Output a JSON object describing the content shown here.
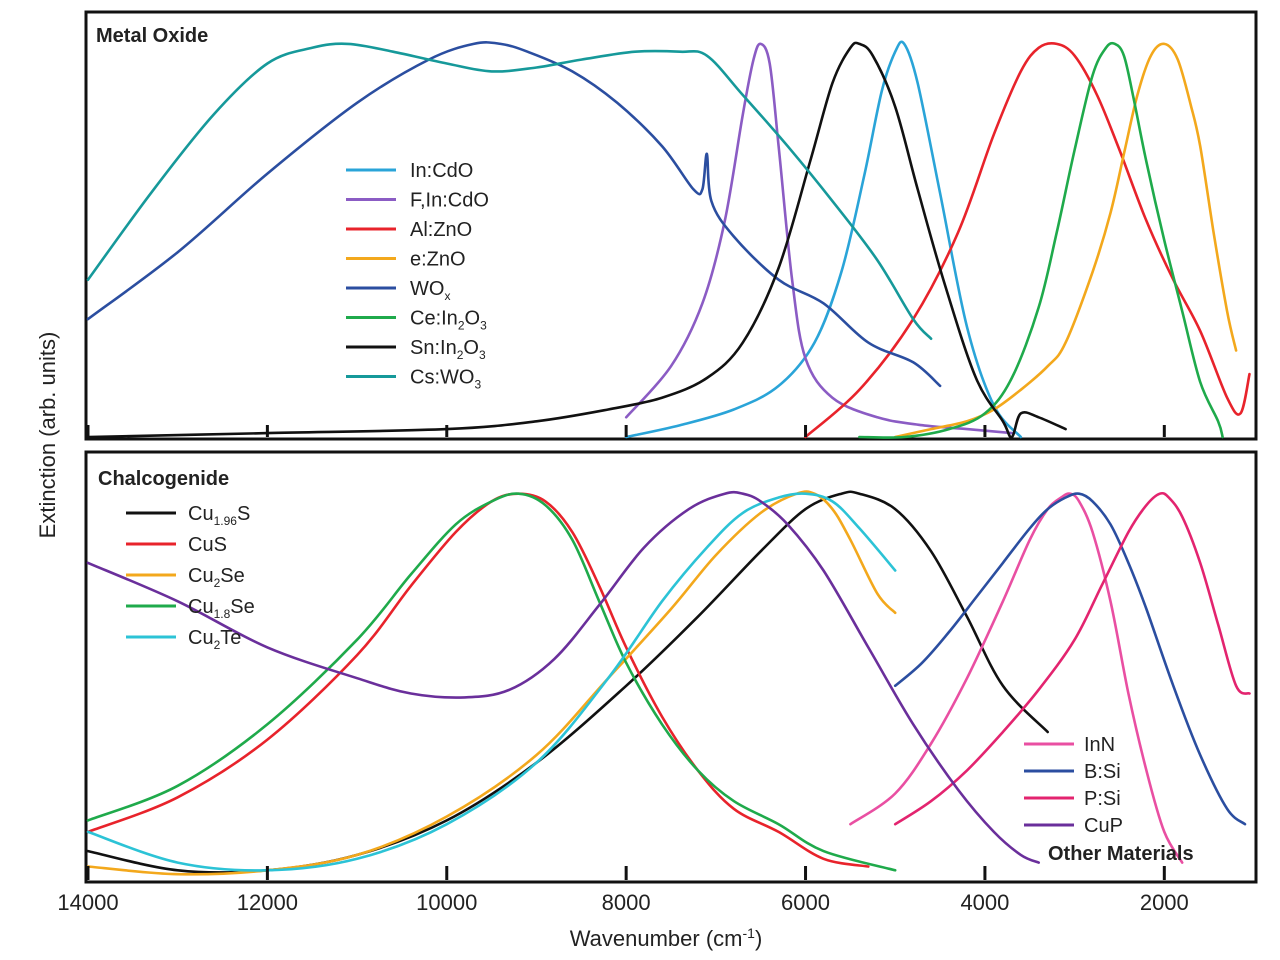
{
  "chart_data": [
    {
      "type": "line",
      "panel_title": "Metal Oxide",
      "xlabel": "Wavenumber (cm-1)",
      "ylabel": "Extinction (arb. units)",
      "xlim": [
        14000,
        1000
      ],
      "ylim": [
        0,
        1.02
      ],
      "x_ticks": [
        14000,
        12000,
        10000,
        8000,
        6000,
        4000,
        2000
      ],
      "grid": false,
      "legend_position": "center-left",
      "series": [
        {
          "name": "In:CdO",
          "color": "#2aa4d8",
          "x": [
            8000,
            7400,
            6800,
            6300,
            5900,
            5600,
            5350,
            5150,
            5000,
            4900,
            4750,
            4500,
            4200,
            3900,
            3600
          ],
          "y": [
            0.0,
            0.03,
            0.07,
            0.13,
            0.24,
            0.42,
            0.66,
            0.88,
            0.98,
            1.0,
            0.9,
            0.62,
            0.28,
            0.08,
            0.0
          ]
        },
        {
          "name": "F,In:CdO",
          "color": "#8b5cc4",
          "x": [
            8000,
            7500,
            7150,
            6900,
            6700,
            6580,
            6500,
            6400,
            6300,
            6150,
            6000,
            5700,
            5200,
            4700,
            4200,
            3700
          ],
          "y": [
            0.05,
            0.18,
            0.34,
            0.55,
            0.82,
            0.96,
            1.0,
            0.95,
            0.74,
            0.4,
            0.2,
            0.1,
            0.05,
            0.03,
            0.02,
            0.01
          ]
        },
        {
          "name": "Al:ZnO",
          "color": "#e8232b",
          "x": [
            6000,
            5400,
            4800,
            4300,
            3900,
            3600,
            3400,
            3200,
            3000,
            2750,
            2500,
            2200,
            1900,
            1600,
            1300,
            1150,
            1050
          ],
          "y": [
            0.0,
            0.12,
            0.3,
            0.52,
            0.77,
            0.93,
            0.99,
            1.0,
            0.97,
            0.87,
            0.73,
            0.55,
            0.4,
            0.27,
            0.1,
            0.06,
            0.16
          ]
        },
        {
          "name": "e:ZnO",
          "color": "#f3a81c",
          "x": [
            5000,
            4600,
            4200,
            3900,
            3600,
            3300,
            3100,
            2800,
            2600,
            2450,
            2300,
            2150,
            2000,
            1850,
            1700,
            1600,
            1450,
            1300,
            1200
          ],
          "y": [
            0.0,
            0.02,
            0.04,
            0.07,
            0.12,
            0.18,
            0.24,
            0.42,
            0.57,
            0.72,
            0.87,
            0.97,
            1.0,
            0.96,
            0.84,
            0.74,
            0.52,
            0.32,
            0.22
          ]
        },
        {
          "name": "WOx",
          "color": "#2b4ea0",
          "x": [
            14000,
            13000,
            12000,
            11000,
            10200,
            9700,
            9400,
            9100,
            8600,
            8100,
            7600,
            7250,
            7150,
            7100,
            7050,
            6800,
            6300,
            5800,
            5300,
            4800,
            4500
          ],
          "y": [
            0.3,
            0.47,
            0.67,
            0.85,
            0.96,
            1.0,
            1.0,
            0.98,
            0.93,
            0.85,
            0.74,
            0.63,
            0.63,
            0.72,
            0.6,
            0.51,
            0.4,
            0.34,
            0.24,
            0.19,
            0.13
          ]
        },
        {
          "name": "Ce:In2O3",
          "color": "#1faa4b",
          "x": [
            5400,
            4900,
            4400,
            4000,
            3700,
            3400,
            3200,
            3000,
            2800,
            2650,
            2550,
            2450,
            2350,
            2200,
            2000,
            1800,
            1600,
            1400,
            1350
          ],
          "y": [
            0.0,
            0.0,
            0.02,
            0.06,
            0.15,
            0.33,
            0.52,
            0.73,
            0.92,
            0.99,
            1.0,
            0.97,
            0.87,
            0.7,
            0.5,
            0.32,
            0.14,
            0.04,
            0.0
          ]
        },
        {
          "name": "Sn:In2O3",
          "color": "#111111",
          "x": [
            14000,
            12000,
            10000,
            9000,
            8200,
            7600,
            7100,
            6700,
            6300,
            5950,
            5700,
            5500,
            5400,
            5250,
            5000,
            4750,
            4450,
            4100,
            3800,
            3700,
            3600,
            3400,
            3100
          ],
          "y": [
            0.0,
            0.01,
            0.02,
            0.04,
            0.07,
            0.1,
            0.15,
            0.24,
            0.43,
            0.7,
            0.9,
            0.99,
            1.0,
            0.97,
            0.84,
            0.63,
            0.39,
            0.15,
            0.04,
            0.0,
            0.06,
            0.05,
            0.02
          ]
        },
        {
          "name": "Cs:WO3",
          "color": "#16999a",
          "x": [
            14000,
            13300,
            12600,
            12000,
            11500,
            11100,
            10600,
            10000,
            9500,
            9000,
            8500,
            7900,
            7400,
            7100,
            6700,
            6200,
            5700,
            5200,
            4800,
            4600
          ],
          "y": [
            0.4,
            0.62,
            0.82,
            0.95,
            0.99,
            1.0,
            0.98,
            0.95,
            0.93,
            0.94,
            0.96,
            0.98,
            0.98,
            0.97,
            0.87,
            0.74,
            0.6,
            0.45,
            0.3,
            0.25
          ]
        }
      ]
    },
    {
      "type": "line",
      "panel_title": "Chalcogenide",
      "secondary_title": "Other Materials",
      "xlabel": "Wavenumber (cm-1)",
      "ylabel": "Extinction (arb. units)",
      "xlim": [
        14000,
        1000
      ],
      "ylim": [
        0,
        1.02
      ],
      "x_ticks": [
        14000,
        12000,
        10000,
        8000,
        6000,
        4000,
        2000
      ],
      "x_tick_labels": [
        "14000",
        "12000",
        "10000",
        "8000",
        "6000",
        "4000",
        "2000"
      ],
      "grid": false,
      "legend_position": "top-left and bottom-right",
      "series": [
        {
          "name": "Cu1.96S",
          "color": "#111111",
          "x": [
            14000,
            13000,
            12000,
            11000,
            10000,
            9000,
            8000,
            7200,
            6500,
            6000,
            5600,
            5400,
            5000,
            4600,
            4200,
            3800,
            3300
          ],
          "y": [
            0.07,
            0.02,
            0.02,
            0.06,
            0.15,
            0.3,
            0.5,
            0.68,
            0.85,
            0.96,
            1.0,
            1.0,
            0.96,
            0.85,
            0.68,
            0.5,
            0.38
          ]
        },
        {
          "name": "CuS",
          "color": "#e8232b",
          "x": [
            14000,
            13000,
            12000,
            11000,
            10400,
            9900,
            9500,
            9200,
            8900,
            8600,
            8300,
            8000,
            7600,
            7200,
            6800,
            6300,
            5800,
            5300
          ],
          "y": [
            0.12,
            0.21,
            0.36,
            0.58,
            0.76,
            0.9,
            0.98,
            1.0,
            0.98,
            0.9,
            0.76,
            0.6,
            0.42,
            0.28,
            0.18,
            0.12,
            0.05,
            0.03
          ]
        },
        {
          "name": "Cu2Se",
          "color": "#f3a81c",
          "x": [
            14000,
            13000,
            12000,
            11000,
            10000,
            9000,
            8200,
            7500,
            7000,
            6500,
            6100,
            5900,
            5700,
            5500,
            5200,
            5000
          ],
          "y": [
            0.03,
            0.01,
            0.02,
            0.06,
            0.16,
            0.32,
            0.52,
            0.7,
            0.84,
            0.95,
            1.0,
            1.0,
            0.96,
            0.88,
            0.74,
            0.69
          ]
        },
        {
          "name": "Cu1.8Se",
          "color": "#1faa4b",
          "x": [
            14000,
            13000,
            12000,
            11000,
            10400,
            9900,
            9500,
            9200,
            8900,
            8600,
            8300,
            8000,
            7600,
            7200,
            6800,
            6300,
            5800,
            5000
          ],
          "y": [
            0.15,
            0.24,
            0.4,
            0.62,
            0.79,
            0.92,
            0.98,
            1.0,
            0.97,
            0.88,
            0.72,
            0.56,
            0.4,
            0.28,
            0.2,
            0.14,
            0.07,
            0.02
          ]
        },
        {
          "name": "Cu2Te",
          "color": "#2cc3d6",
          "x": [
            14000,
            13000,
            12000,
            11000,
            10000,
            9000,
            8200,
            7600,
            7100,
            6700,
            6300,
            6000,
            5700,
            5400,
            5000
          ],
          "y": [
            0.12,
            0.04,
            0.02,
            0.05,
            0.14,
            0.3,
            0.52,
            0.72,
            0.86,
            0.95,
            0.99,
            1.0,
            0.98,
            0.91,
            0.8
          ]
        },
        {
          "name": "InN",
          "color": "#e94fa2",
          "x": [
            5500,
            5000,
            4600,
            4200,
            3800,
            3500,
            3300,
            3150,
            3050,
            2950,
            2800,
            2600,
            2400,
            2200,
            2000,
            1800
          ],
          "y": [
            0.14,
            0.22,
            0.35,
            0.52,
            0.72,
            0.88,
            0.96,
            0.99,
            1.0,
            0.98,
            0.9,
            0.72,
            0.48,
            0.28,
            0.12,
            0.04
          ]
        },
        {
          "name": "B:Si",
          "color": "#2b4ea0",
          "x": [
            5000,
            4700,
            4400,
            4100,
            3800,
            3500,
            3300,
            3100,
            2950,
            2800,
            2600,
            2400,
            2200,
            1900,
            1600,
            1300,
            1100
          ],
          "y": [
            0.5,
            0.56,
            0.64,
            0.73,
            0.82,
            0.91,
            0.96,
            0.99,
            1.0,
            0.98,
            0.92,
            0.82,
            0.7,
            0.5,
            0.32,
            0.18,
            0.14
          ]
        },
        {
          "name": "P:Si",
          "color": "#e3246f",
          "x": [
            5000,
            4600,
            4200,
            3800,
            3400,
            3000,
            2700,
            2400,
            2200,
            2050,
            1950,
            1800,
            1600,
            1400,
            1200,
            1050
          ],
          "y": [
            0.14,
            0.2,
            0.28,
            0.38,
            0.49,
            0.62,
            0.76,
            0.9,
            0.97,
            1.0,
            0.99,
            0.94,
            0.82,
            0.66,
            0.5,
            0.48
          ]
        },
        {
          "name": "CuP",
          "color": "#6a2f9b",
          "x": [
            14000,
            13000,
            12000,
            11000,
            10400,
            9800,
            9300,
            8800,
            8300,
            7800,
            7300,
            6900,
            6700,
            6500,
            6200,
            5800,
            5300,
            4800,
            4300,
            3900,
            3600,
            3400
          ],
          "y": [
            0.82,
            0.72,
            0.6,
            0.52,
            0.48,
            0.47,
            0.49,
            0.57,
            0.71,
            0.86,
            0.96,
            1.0,
            1.0,
            0.98,
            0.92,
            0.8,
            0.6,
            0.4,
            0.23,
            0.12,
            0.06,
            0.04
          ]
        }
      ]
    }
  ],
  "labels": {
    "top_title": "Metal Oxide",
    "bottom_title": "Chalcogenide",
    "other_materials": "Other Materials",
    "ylabel": "Extinction (arb. units)",
    "xlabel_main": "Wavenumber (cm",
    "xlabel_sup": "-1",
    "xlabel_end": ")"
  },
  "legend_top": [
    {
      "base": "In:CdO",
      "sub": "",
      "tail": "",
      "color": "#2aa4d8"
    },
    {
      "base": "F,In:CdO",
      "sub": "",
      "tail": "",
      "color": "#8b5cc4"
    },
    {
      "base": "Al:ZnO",
      "sub": "",
      "tail": "",
      "color": "#e8232b"
    },
    {
      "base": "e:ZnO",
      "sub": "",
      "tail": "",
      "color": "#f3a81c"
    },
    {
      "base": "WO",
      "sub": "x",
      "tail": "",
      "color": "#2b4ea0"
    },
    {
      "base": "Ce:In",
      "sub": "2",
      "tail": "O",
      "sub2": "3",
      "color": "#1faa4b"
    },
    {
      "base": "Sn:In",
      "sub": "2",
      "tail": "O",
      "sub2": "3",
      "color": "#111111"
    },
    {
      "base": "Cs:WO",
      "sub": "3",
      "tail": "",
      "color": "#16999a"
    }
  ],
  "legend_bottom_left": [
    {
      "base": "Cu",
      "sub": "1.96",
      "tail": "S",
      "color": "#111111"
    },
    {
      "base": "CuS",
      "sub": "",
      "tail": "",
      "color": "#e8232b"
    },
    {
      "base": "Cu",
      "sub": "2",
      "tail": "Se",
      "color": "#f3a81c"
    },
    {
      "base": "Cu",
      "sub": "1.8",
      "tail": "Se",
      "color": "#1faa4b"
    },
    {
      "base": "Cu",
      "sub": "2",
      "tail": "Te",
      "color": "#2cc3d6"
    }
  ],
  "legend_bottom_right": [
    {
      "base": "InN",
      "sub": "",
      "tail": "",
      "color": "#e94fa2"
    },
    {
      "base": "B:Si",
      "sub": "",
      "tail": "",
      "color": "#2b4ea0"
    },
    {
      "base": "P:Si",
      "sub": "",
      "tail": "",
      "color": "#e3246f"
    },
    {
      "base": "CuP",
      "sub": "",
      "tail": "",
      "color": "#6a2f9b"
    }
  ]
}
